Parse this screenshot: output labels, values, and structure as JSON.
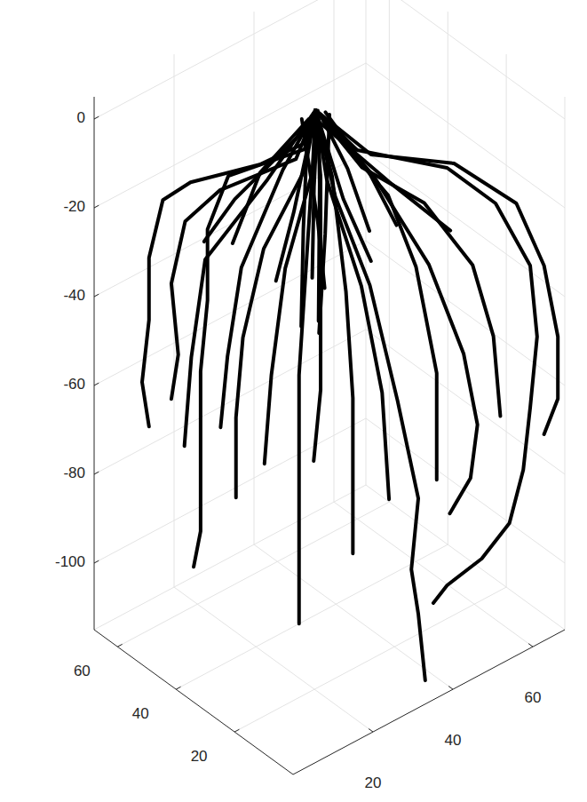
{
  "chart_data": {
    "type": "line3d",
    "color": "#000000",
    "grid": true,
    "xlim": [
      0,
      68
    ],
    "ylim": [
      0,
      68
    ],
    "zlim": [
      -115,
      5
    ],
    "xticks": [
      20,
      40,
      60
    ],
    "yticks": [
      20,
      40,
      60
    ],
    "zticks": [
      -100,
      -80,
      -60,
      -40,
      -20,
      0
    ],
    "series": [
      {
        "x": [
          32,
          31,
          29,
          19,
          15,
          13,
          13,
          12,
          13
        ],
        "y": [
          36,
          37,
          51,
          61,
          65,
          67,
          67,
          68,
          67
        ],
        "z": [
          2,
          -5,
          -16,
          -20,
          -24,
          -37,
          -51,
          -65,
          -75
        ]
      },
      {
        "x": [
          32,
          27,
          16,
          13,
          13,
          12,
          12,
          12,
          11
        ],
        "y": [
          36,
          33,
          44,
          47,
          47,
          48,
          48,
          48,
          49
        ],
        "z": [
          2,
          -3,
          -9,
          -21,
          -37,
          -53,
          -73,
          -89,
          -97
        ]
      },
      {
        "x": [
          32,
          24,
          23,
          22,
          22,
          22,
          22
        ],
        "y": [
          36,
          26,
          27,
          28,
          28,
          28,
          28
        ],
        "z": [
          2,
          -1,
          -25,
          -49,
          -69,
          -89,
          -105
        ]
      },
      {
        "x": [
          32,
          23,
          28,
          32,
          35,
          34,
          35,
          36
        ],
        "y": [
          36,
          17,
          12,
          8,
          5,
          6,
          5,
          4
        ],
        "z": [
          2,
          -4,
          -24,
          -50,
          -72,
          -88,
          -98,
          -113
        ]
      },
      {
        "x": [
          32,
          38,
          51,
          58,
          63,
          64,
          63,
          62,
          60,
          56,
          51,
          49
        ],
        "y": [
          36,
          30,
          17,
          10,
          5,
          4,
          5,
          6,
          8,
          12,
          17,
          19
        ],
        "z": [
          2,
          -7,
          -11,
          -19,
          -33,
          -49,
          -65,
          -79,
          -91,
          -99,
          -105,
          -109
        ]
      },
      {
        "x": [
          32,
          31,
          33,
          34,
          34,
          34
        ],
        "y": [
          36,
          29,
          27,
          26,
          26,
          26
        ],
        "z": [
          2,
          -9,
          -35,
          -59,
          -81,
          -94
        ]
      },
      {
        "x": [
          32,
          37,
          45,
          50,
          52,
          51,
          48
        ],
        "y": [
          36,
          23,
          15,
          10,
          8,
          9,
          12
        ],
        "z": [
          2,
          -9,
          -29,
          -49,
          -65,
          -77,
          -85
        ]
      },
      {
        "x": [
          32,
          40,
          52,
          61,
          65,
          67,
          67,
          65
        ],
        "y": [
          36,
          28,
          16,
          7,
          3,
          1,
          1,
          3
        ],
        "z": [
          2,
          -8,
          -10,
          -19,
          -33,
          -49,
          -63,
          -71
        ]
      },
      {
        "x": [
          32,
          30,
          19,
          14,
          12,
          13,
          12
        ],
        "y": [
          36,
          40,
          51,
          56,
          58,
          57,
          58
        ],
        "z": [
          2,
          -10,
          -17,
          -24,
          -38,
          -54,
          -64
        ]
      },
      {
        "x": [
          32,
          25,
          19,
          16,
          15,
          15
        ],
        "y": [
          36,
          30,
          36,
          39,
          40,
          40
        ],
        "z": [
          2,
          -5,
          -23,
          -43,
          -61,
          -79
        ]
      },
      {
        "x": [
          32,
          24,
          20,
          18,
          17
        ],
        "y": [
          36,
          26,
          30,
          32,
          33
        ],
        "z": [
          2,
          -3,
          -25,
          -49,
          -69
        ]
      },
      {
        "x": [
          32,
          26,
          31,
          34,
          35
        ],
        "y": [
          36,
          24,
          19,
          16,
          15
        ],
        "z": [
          2,
          -5,
          -29,
          -53,
          -77
        ]
      },
      {
        "x": [
          32,
          37,
          46,
          53,
          56,
          57
        ],
        "y": [
          36,
          27,
          18,
          11,
          8,
          7
        ],
        "z": [
          2,
          -9,
          -17,
          -31,
          -47,
          -65
        ]
      },
      {
        "x": [
          32,
          28,
          19,
          17,
          16
        ],
        "y": [
          36,
          47,
          56,
          58,
          59
        ],
        "z": [
          2,
          -17,
          -35,
          -57,
          -77
        ]
      },
      {
        "x": [
          32,
          23,
          23,
          23,
          22
        ],
        "y": [
          36,
          22,
          22,
          22,
          23
        ],
        "z": [
          2,
          -2,
          -28,
          -50,
          -66
        ]
      },
      {
        "x": [
          32,
          37,
          41,
          44,
          44
        ],
        "y": [
          36,
          18,
          14,
          11,
          11
        ],
        "z": [
          2,
          -11,
          -27,
          -51,
          -75
        ]
      },
      {
        "x": [
          32,
          26,
          20,
          18,
          17
        ],
        "y": [
          36,
          39,
          45,
          47,
          48
        ],
        "z": [
          2,
          -10,
          -32,
          -52,
          -68
        ]
      },
      {
        "x": [
          32,
          28,
          25
        ],
        "y": [
          36,
          38,
          40
        ],
        "z": [
          2,
          -20,
          -35
        ]
      },
      {
        "x": [
          32,
          36,
          40
        ],
        "y": [
          36,
          32,
          28
        ],
        "z": [
          2,
          -18,
          -32
        ]
      },
      {
        "x": [
          30,
          34,
          35
        ],
        "y": [
          38,
          38,
          37
        ],
        "z": [
          0,
          -25,
          -40
        ]
      },
      {
        "x": [
          34,
          30,
          27
        ],
        "y": [
          34,
          30,
          28
        ],
        "z": [
          1,
          -22,
          -42
        ]
      },
      {
        "x": [
          33,
          40,
          44
        ],
        "y": [
          35,
          36,
          34
        ],
        "z": [
          0,
          -15,
          -30
        ]
      },
      {
        "x": [
          31,
          24,
          20
        ],
        "y": [
          37,
          44,
          48
        ],
        "z": [
          0,
          -12,
          -28
        ]
      },
      {
        "x": [
          33,
          38,
          42
        ],
        "y": [
          34,
          26,
          22
        ],
        "z": [
          2,
          -10,
          -22
        ]
      },
      {
        "x": [
          30,
          26,
          24
        ],
        "y": [
          36,
          32,
          30
        ],
        "z": [
          -1,
          -20,
          -40
        ]
      },
      {
        "x": [
          34,
          36,
          37
        ],
        "y": [
          38,
          42,
          44
        ],
        "z": [
          0,
          -20,
          -42
        ]
      },
      {
        "x": [
          32,
          33,
          32
        ],
        "y": [
          35,
          36,
          35
        ],
        "z": [
          1,
          -15,
          -45
        ]
      },
      {
        "x": [
          32,
          22,
          18
        ],
        "y": [
          36,
          50,
          55
        ],
        "z": [
          0,
          -20,
          -30
        ]
      },
      {
        "x": [
          32,
          46,
          54
        ],
        "y": [
          36,
          30,
          20
        ],
        "z": [
          0,
          -18,
          -28
        ]
      }
    ]
  }
}
